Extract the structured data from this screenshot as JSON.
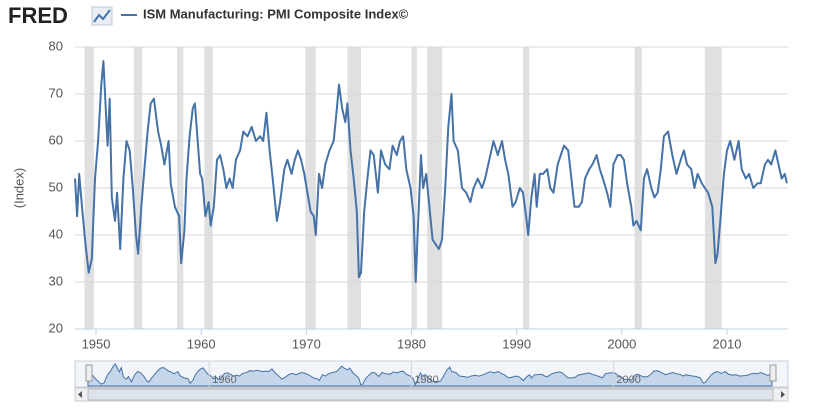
{
  "chart_data": {
    "type": "line",
    "logo": "FRED",
    "title": "ISM Manufacturing: PMI Composite Index©",
    "y_label": "(Index)",
    "xlim": [
      1948,
      2015.8
    ],
    "ylim": [
      20,
      80
    ],
    "xticks": [
      1950,
      1960,
      1970,
      1980,
      1990,
      2000,
      2010
    ],
    "yticks": [
      20,
      30,
      40,
      50,
      60,
      70,
      80
    ],
    "grid": true,
    "recessions": [
      [
        1948.9,
        1949.8
      ],
      [
        1953.6,
        1954.4
      ],
      [
        1957.7,
        1958.3
      ],
      [
        1960.3,
        1961.1
      ],
      [
        1969.9,
        1970.9
      ],
      [
        1973.9,
        1975.2
      ],
      [
        1980.0,
        1980.5
      ],
      [
        1981.5,
        1982.9
      ],
      [
        1990.6,
        1991.2
      ],
      [
        2001.2,
        2001.9
      ],
      [
        2007.9,
        2009.5
      ]
    ],
    "navigator_xticks": [
      1960,
      1980,
      2000
    ],
    "x": [
      1948.0,
      1948.2,
      1948.4,
      1948.7,
      1949.0,
      1949.3,
      1949.6,
      1949.9,
      1950.2,
      1950.5,
      1950.7,
      1950.9,
      1951.1,
      1951.3,
      1951.5,
      1951.8,
      1952.0,
      1952.3,
      1952.6,
      1952.9,
      1953.2,
      1953.5,
      1953.8,
      1954.0,
      1954.3,
      1954.6,
      1954.9,
      1955.2,
      1955.5,
      1955.9,
      1956.2,
      1956.5,
      1956.9,
      1957.1,
      1957.5,
      1957.9,
      1958.1,
      1958.4,
      1958.6,
      1958.9,
      1959.2,
      1959.4,
      1959.6,
      1959.9,
      1960.1,
      1960.4,
      1960.7,
      1960.9,
      1961.2,
      1961.5,
      1961.8,
      1962.1,
      1962.4,
      1962.7,
      1963.0,
      1963.3,
      1963.7,
      1964.0,
      1964.4,
      1964.8,
      1965.2,
      1965.6,
      1965.9,
      1966.2,
      1966.5,
      1966.8,
      1967.2,
      1967.5,
      1967.9,
      1968.2,
      1968.6,
      1968.9,
      1969.2,
      1969.5,
      1969.8,
      1970.1,
      1970.4,
      1970.7,
      1970.9,
      1971.2,
      1971.5,
      1971.8,
      1972.2,
      1972.6,
      1972.9,
      1973.1,
      1973.4,
      1973.7,
      1973.9,
      1974.2,
      1974.5,
      1974.8,
      1975.0,
      1975.2,
      1975.5,
      1975.8,
      1976.1,
      1976.4,
      1976.8,
      1977.1,
      1977.5,
      1977.9,
      1978.2,
      1978.6,
      1978.9,
      1979.2,
      1979.5,
      1979.9,
      1980.2,
      1980.4,
      1980.6,
      1980.9,
      1981.1,
      1981.4,
      1981.7,
      1982.0,
      1982.3,
      1982.6,
      1982.9,
      1983.2,
      1983.5,
      1983.8,
      1984.0,
      1984.4,
      1984.8,
      1985.2,
      1985.6,
      1985.9,
      1986.3,
      1986.7,
      1987.0,
      1987.4,
      1987.8,
      1988.2,
      1988.6,
      1988.9,
      1989.2,
      1989.6,
      1989.9,
      1990.3,
      1990.6,
      1990.9,
      1991.1,
      1991.4,
      1991.7,
      1991.9,
      1992.2,
      1992.5,
      1992.9,
      1993.2,
      1993.5,
      1993.9,
      1994.2,
      1994.5,
      1994.9,
      1995.2,
      1995.5,
      1995.9,
      1996.2,
      1996.5,
      1996.9,
      1997.2,
      1997.6,
      1997.9,
      1998.2,
      1998.6,
      1998.9,
      1999.2,
      1999.6,
      1999.9,
      2000.2,
      2000.5,
      2000.9,
      2001.1,
      2001.4,
      2001.8,
      2002.1,
      2002.4,
      2002.8,
      2003.1,
      2003.4,
      2003.7,
      2004.0,
      2004.4,
      2004.8,
      2005.2,
      2005.6,
      2005.9,
      2006.2,
      2006.6,
      2006.9,
      2007.2,
      2007.6,
      2007.9,
      2008.2,
      2008.6,
      2008.9,
      2009.1,
      2009.4,
      2009.7,
      2010.0,
      2010.3,
      2010.7,
      2011.1,
      2011.4,
      2011.8,
      2012.1,
      2012.5,
      2012.9,
      2013.2,
      2013.6,
      2013.9,
      2014.2,
      2014.6,
      2014.9,
      2015.2,
      2015.5,
      2015.7
    ],
    "series": [
      {
        "name": "ISM Manufacturing: PMI Composite Index©",
        "color": "#4572a7",
        "values": [
          52,
          44,
          53,
          45,
          38,
          32,
          35,
          52,
          60,
          72,
          77,
          68,
          59,
          69,
          48,
          43,
          49,
          37,
          52,
          60,
          58,
          50,
          40,
          36,
          46,
          54,
          62,
          68,
          69,
          62,
          59,
          55,
          60,
          51,
          46,
          44,
          34,
          41,
          52,
          61,
          67,
          68,
          62,
          53,
          52,
          44,
          47,
          42,
          46,
          56,
          57,
          54,
          50,
          52,
          50,
          56,
          58,
          62,
          61,
          63,
          60,
          61,
          60,
          66,
          58,
          52,
          43,
          47,
          54,
          56,
          53,
          56,
          58,
          56,
          53,
          49,
          45,
          44,
          40,
          53,
          50,
          55,
          58,
          60,
          67,
          72,
          67,
          64,
          68,
          58,
          52,
          45,
          31,
          32,
          45,
          52,
          58,
          57,
          49,
          58,
          55,
          54,
          59,
          57,
          60,
          61,
          54,
          50,
          44,
          30,
          41,
          57,
          50,
          53,
          46,
          39,
          38,
          37,
          39,
          50,
          63,
          70,
          60,
          58,
          50,
          49,
          47,
          50,
          52,
          50,
          52,
          56,
          60,
          57,
          60,
          56,
          53,
          46,
          47,
          50,
          49,
          44,
          40,
          48,
          53,
          46,
          53,
          53,
          54,
          50,
          49,
          55,
          57,
          59,
          58,
          52,
          46,
          46,
          47,
          52,
          54,
          55,
          57,
          54,
          52,
          49,
          46,
          55,
          57,
          57,
          56,
          51,
          46,
          42,
          43,
          41,
          52,
          54,
          50,
          48,
          49,
          54,
          61,
          62,
          57,
          53,
          56,
          58,
          55,
          54,
          50,
          53,
          51,
          50,
          49,
          46,
          34,
          36,
          44,
          53,
          58,
          60,
          56,
          60,
          54,
          52,
          53,
          50,
          51,
          51,
          55,
          56,
          55,
          58,
          55,
          52,
          53,
          51
        ]
      }
    ]
  }
}
